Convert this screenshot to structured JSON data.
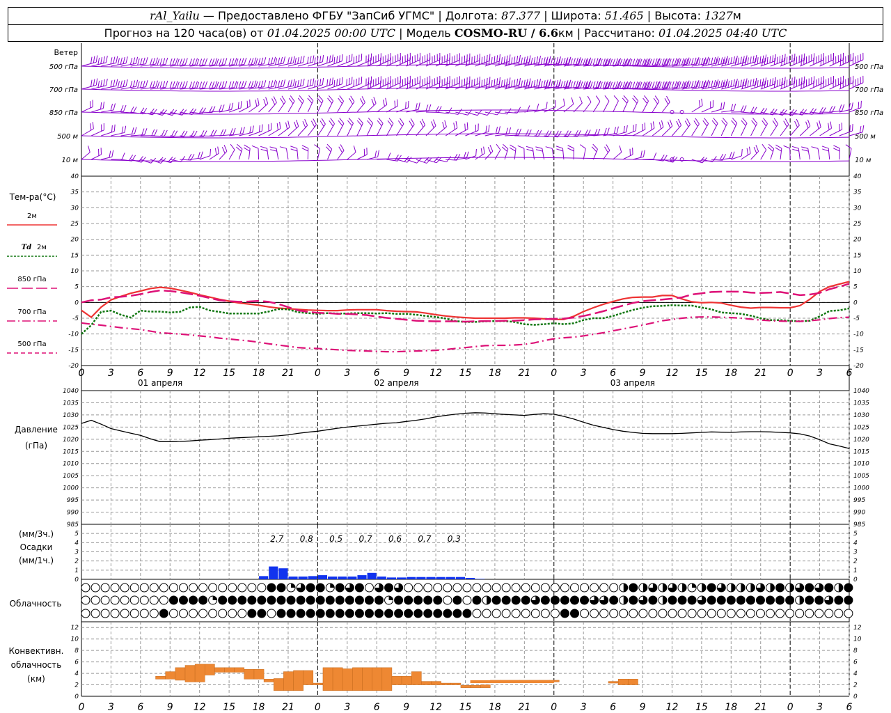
{
  "header": {
    "station": "rAl_Yailu",
    "dash": " — ",
    "provider": "Предоставлено ФГБУ \"ЗапСиб УГМС\"",
    "sep1": " | ",
    "lon_label": "Долгота: ",
    "lon_value": "87.377",
    "sep2": " | ",
    "lat_label": "Широта: ",
    "lat_value": "51.465",
    "sep3": " | ",
    "alt_label": "Высота: ",
    "alt_value": "1327",
    "alt_unit": "м",
    "forecast_label": "Прогноз на 120 часа(ов) от ",
    "forecast_start": "01.04.2025 00:00 UTC",
    "model_label": "  | Модель ",
    "model_name": "COSMO-RU / 6.6",
    "model_unit": "км",
    "calc_label": " | Рассчитано: ",
    "calc_time": "01.04.2025 04:40 UTC"
  },
  "colors": {
    "t2m": "#ee3333",
    "td2m": "#117711",
    "t850": "#dd1177",
    "t700": "#dd1177",
    "t500": "#dd1177",
    "wind": "#8800cc",
    "precip": "#1133ee",
    "conv": "#ee8833",
    "pressure": "#000000",
    "grid": "#999999"
  },
  "wind_panel": {
    "title": "Ветер",
    "levels": [
      "500 гПа",
      "700 гПа",
      "850 гПа",
      "500  м",
      "10   м"
    ]
  },
  "temp_panel": {
    "title": "Тем-ра(°C)",
    "legend": [
      {
        "label": "2м",
        "style": "solid"
      },
      {
        "label_prefix": "Td",
        "label": "2м",
        "style": "dotted"
      },
      {
        "label": "850 гПа",
        "style": "longdash"
      },
      {
        "label": "700 гПа",
        "style": "dashdot"
      },
      {
        "label": "500 гПа",
        "style": "dash"
      }
    ],
    "yticks": [
      "40",
      "35",
      "30",
      "25",
      "20",
      "15",
      "10",
      "5",
      "0",
      "-5",
      "-10",
      "-15",
      "-20"
    ]
  },
  "x_axis": {
    "hour_ticks": [
      "0",
      "3",
      "6",
      "9",
      "12",
      "15",
      "18",
      "21",
      "0",
      "3",
      "6",
      "9",
      "12",
      "15",
      "18",
      "21",
      "0",
      "3",
      "6",
      "9",
      "12",
      "15",
      "18",
      "21",
      "0",
      "3",
      "6"
    ],
    "days": [
      "01 апреля",
      "02 апреля",
      "03 апреля"
    ]
  },
  "pressure_panel": {
    "title": "Давление",
    "unit": "(гПа)",
    "yticks": [
      "1040",
      "1035",
      "1030",
      "1025",
      "1020",
      "1015",
      "1010",
      "1005",
      "1000",
      "995",
      "990",
      "985"
    ]
  },
  "precip_panel": {
    "unit_3h": "(мм/3ч.)",
    "title": "Осадки",
    "unit_1h": "(мм/1ч.)",
    "yticks": [
      "5",
      "4",
      "3",
      "2",
      "1",
      "0"
    ],
    "sums_3h": [
      "2.7",
      "0.8",
      "0.5",
      "0.7",
      "0.6",
      "0.7",
      "0.3"
    ]
  },
  "cloud_panel": {
    "title": "Облачность"
  },
  "conv_panel": {
    "title_line1": "Конвективн.",
    "title_line2": "облачность",
    "unit": "(км)",
    "yticks": [
      "12",
      "10",
      "8",
      "6",
      "4",
      "2",
      "0"
    ]
  },
  "chart_data": [
    {
      "type": "line",
      "title": "Тем-ра(°C)",
      "x_hours": [
        0,
        1,
        2,
        3,
        4,
        5,
        6,
        7,
        8,
        9,
        10,
        11,
        12,
        13,
        14,
        15,
        16,
        17,
        18,
        19,
        20,
        21,
        22,
        23,
        24,
        25,
        26,
        27,
        28,
        29,
        30,
        31,
        32,
        33,
        34,
        35,
        36,
        37,
        38,
        39,
        40,
        41,
        42,
        43,
        44,
        45,
        46,
        47,
        48,
        49,
        50,
        51,
        52,
        53,
        54,
        55,
        56,
        57,
        58,
        59,
        60,
        61,
        62,
        63,
        64,
        65,
        66,
        67,
        68,
        69,
        70,
        71,
        72,
        73,
        74,
        75,
        76,
        77,
        78
      ],
      "ylim": [
        -20,
        40
      ],
      "series": [
        {
          "name": "2м",
          "values": [
            -2.5,
            -4.7,
            -1.5,
            0.8,
            1.9,
            2.9,
            3.6,
            4.4,
            4.8,
            4.5,
            3.9,
            3.2,
            2.4,
            1.7,
            1.0,
            0.4,
            -0.2,
            -0.5,
            -0.9,
            -1.4,
            -1.8,
            -2.0,
            -2.2,
            -2.4,
            -2.5,
            -2.6,
            -2.6,
            -2.4,
            -2.3,
            -2.3,
            -2.3,
            -2.6,
            -2.8,
            -2.9,
            -3.0,
            -3.4,
            -3.9,
            -4.3,
            -4.6,
            -4.8,
            -5.0,
            -5.0,
            -5.0,
            -5.0,
            -4.9,
            -4.9,
            -5.0,
            -5.2,
            -5.4,
            -5.4,
            -4.4,
            -2.9,
            -1.7,
            -0.6,
            0.3,
            1.1,
            1.6,
            1.7,
            1.7,
            2.2,
            2.2,
            1.1,
            0.2,
            -0.1,
            0.0,
            -0.2,
            -0.9,
            -1.5,
            -1.8,
            -1.6,
            -1.6,
            -1.7,
            -1.7,
            -1.0,
            1.0,
            3.5,
            5.0,
            5.8,
            6.6
          ]
        },
        {
          "name": "Td 2м",
          "values": [
            -10.0,
            -7.2,
            -3.0,
            -2.6,
            -3.9,
            -4.8,
            -2.6,
            -2.9,
            -2.9,
            -3.2,
            -3.0,
            -1.6,
            -1.4,
            -2.5,
            -3.0,
            -3.5,
            -3.5,
            -3.5,
            -3.5,
            -2.9,
            -2.1,
            -2.2,
            -3.1,
            -3.4,
            -3.6,
            -3.4,
            -3.5,
            -3.5,
            -3.4,
            -3.4,
            -3.5,
            -3.4,
            -3.6,
            -3.6,
            -3.9,
            -4.3,
            -4.6,
            -5.1,
            -5.9,
            -6.2,
            -6.2,
            -6.0,
            -5.9,
            -5.9,
            -6.2,
            -6.9,
            -7.1,
            -6.9,
            -6.6,
            -6.9,
            -6.6,
            -5.6,
            -5.0,
            -5.0,
            -4.3,
            -3.3,
            -2.4,
            -1.7,
            -1.2,
            -1.1,
            -0.9,
            -1.0,
            -1.0,
            -1.6,
            -2.2,
            -3.2,
            -3.4,
            -3.6,
            -4.2,
            -5.0,
            -5.6,
            -5.6,
            -5.8,
            -6.0,
            -5.8,
            -4.4,
            -2.7,
            -2.5,
            -1.9
          ]
        },
        {
          "name": "850 гПа",
          "values": [
            0.0,
            0.7,
            0.9,
            1.6,
            1.8,
            2.1,
            2.6,
            3.3,
            3.8,
            3.6,
            3.2,
            2.7,
            2.1,
            1.4,
            0.7,
            0.4,
            0.2,
            0.3,
            0.5,
            0.2,
            -0.5,
            -1.5,
            -2.5,
            -3.0,
            -3.3,
            -3.4,
            -3.6,
            -3.6,
            -3.8,
            -4.0,
            -4.5,
            -4.9,
            -5.2,
            -5.5,
            -5.8,
            -5.9,
            -6.0,
            -6.0,
            -6.0,
            -6.1,
            -6.0,
            -5.9,
            -5.9,
            -5.8,
            -5.8,
            -5.6,
            -5.4,
            -5.3,
            -5.2,
            -5.1,
            -4.8,
            -4.3,
            -3.6,
            -2.8,
            -1.9,
            -1.0,
            -0.2,
            0.4,
            0.7,
            0.9,
            1.2,
            1.6,
            2.5,
            2.9,
            3.3,
            3.4,
            3.4,
            3.4,
            3.1,
            3.0,
            3.1,
            3.3,
            2.8,
            2.3,
            2.5,
            3.0,
            4.2,
            5.0,
            5.9
          ]
        },
        {
          "name": "700 гПа",
          "values": [
            -6.5,
            -6.9,
            -7.2,
            -7.6,
            -8.0,
            -8.3,
            -8.6,
            -9.1,
            -9.6,
            -9.8,
            -10.0,
            -10.3,
            -10.6,
            -10.9,
            -11.3,
            -11.6,
            -11.9,
            -12.2,
            -12.6,
            -13.1,
            -13.5,
            -13.9,
            -14.3,
            -14.5,
            -14.6,
            -14.8,
            -15.0,
            -15.2,
            -15.3,
            -15.4,
            -15.5,
            -15.6,
            -15.6,
            -15.5,
            -15.4,
            -15.3,
            -15.2,
            -14.9,
            -14.6,
            -14.3,
            -14.0,
            -13.7,
            -13.6,
            -13.6,
            -13.5,
            -13.3,
            -12.8,
            -12.1,
            -11.5,
            -11.2,
            -11.0,
            -10.6,
            -10.1,
            -9.6,
            -9.0,
            -8.4,
            -7.8,
            -7.2,
            -6.5,
            -5.8,
            -5.4,
            -5.0,
            -4.7,
            -4.6,
            -4.6,
            -4.7,
            -4.8,
            -5.0,
            -5.3,
            -5.6,
            -5.8,
            -5.9,
            -6.0,
            -6.0,
            -5.8,
            -5.5,
            -5.1,
            -4.8,
            -4.7
          ]
        }
      ]
    },
    {
      "type": "line",
      "title": "Давление",
      "ylabel": "(гПа)",
      "ylim": [
        985,
        1040
      ],
      "x_hours": [
        0,
        1,
        2,
        3,
        4,
        5,
        6,
        7,
        8,
        9,
        10,
        11,
        12,
        13,
        14,
        15,
        16,
        17,
        18,
        19,
        20,
        21,
        22,
        23,
        24,
        25,
        26,
        27,
        28,
        29,
        30,
        31,
        32,
        33,
        34,
        35,
        36,
        37,
        38,
        39,
        40,
        41,
        42,
        43,
        44,
        45,
        46,
        47,
        48,
        49,
        50,
        51,
        52,
        53,
        54,
        55,
        56,
        57,
        58,
        59,
        60,
        61,
        62,
        63,
        64,
        65,
        66,
        67,
        68,
        69,
        70,
        71,
        72,
        73,
        74,
        75,
        76,
        77,
        78
      ],
      "values": [
        1026.5,
        1027.8,
        1026.2,
        1024.4,
        1023.4,
        1022.5,
        1021.6,
        1020.2,
        1019.0,
        1019.0,
        1019.1,
        1019.3,
        1019.6,
        1019.8,
        1020.1,
        1020.4,
        1020.6,
        1020.8,
        1021.0,
        1021.2,
        1021.4,
        1021.8,
        1022.4,
        1022.9,
        1023.3,
        1023.9,
        1024.5,
        1025.0,
        1025.4,
        1025.8,
        1026.2,
        1026.6,
        1026.8,
        1027.3,
        1027.8,
        1028.4,
        1029.2,
        1029.8,
        1030.3,
        1030.7,
        1030.9,
        1030.8,
        1030.5,
        1030.2,
        1030.0,
        1029.8,
        1030.2,
        1030.5,
        1030.3,
        1029.4,
        1028.3,
        1027.0,
        1025.8,
        1024.9,
        1024.0,
        1023.3,
        1022.8,
        1022.4,
        1022.3,
        1022.3,
        1022.3,
        1022.4,
        1022.6,
        1022.8,
        1023.0,
        1022.9,
        1022.8,
        1023.0,
        1023.1,
        1023.1,
        1023.0,
        1022.8,
        1022.6,
        1022.2,
        1021.3,
        1019.8,
        1018.1,
        1017.2,
        1016.2
      ]
    },
    {
      "type": "bar",
      "title": "Осадки",
      "ylabel": "(мм/1ч.)",
      "ylim": [
        0,
        5
      ],
      "x_hours": [
        18,
        19,
        20,
        21,
        22,
        23,
        24,
        25,
        26,
        27,
        28,
        29,
        30,
        31,
        32,
        33,
        34,
        35,
        36,
        37,
        38,
        39,
        40
      ],
      "values": [
        0.35,
        1.4,
        1.2,
        0.3,
        0.3,
        0.35,
        0.45,
        0.3,
        0.3,
        0.3,
        0.45,
        0.7,
        0.3,
        0.2,
        0.2,
        0.25,
        0.25,
        0.25,
        0.25,
        0.25,
        0.25,
        0.15,
        0.05
      ]
    },
    {
      "type": "bar",
      "title": "Конвективн. облачность",
      "ylabel": "(км)",
      "ylim": [
        0,
        13
      ],
      "x_hours": [
        8,
        9,
        10,
        11,
        12,
        13,
        14,
        15,
        16,
        17,
        18,
        19,
        20,
        21,
        22,
        23,
        24,
        25,
        26,
        27,
        28,
        29,
        30,
        31,
        32,
        33,
        34,
        35,
        36,
        37,
        38,
        39,
        40,
        41,
        42,
        43,
        44,
        45,
        46,
        47,
        48,
        54,
        55,
        56
      ],
      "bottoms": [
        3,
        3,
        2.8,
        2.5,
        2.5,
        3.7,
        4.2,
        4.2,
        4.2,
        3,
        3,
        2.5,
        1,
        1,
        1,
        2,
        2,
        1,
        1,
        1,
        1,
        1,
        1,
        1,
        2,
        2,
        2,
        2,
        2,
        2,
        2,
        1.5,
        1.5,
        1.5,
        2.5,
        2.5,
        2.5,
        2.5,
        2.5,
        2.5,
        2.5,
        2.3,
        2.0,
        2.0
      ],
      "tops": [
        3.5,
        4.3,
        5.0,
        5.4,
        5.6,
        5.6,
        5.0,
        5.0,
        5.0,
        4.7,
        4.7,
        3.0,
        3.1,
        4.3,
        4.5,
        4.5,
        2.3,
        5.0,
        5.0,
        4.8,
        5.0,
        5.0,
        5.0,
        5.0,
        3.5,
        3.5,
        4.3,
        2.6,
        2.6,
        2.3,
        2.3,
        1.9,
        1.9,
        2.0,
        2.8,
        2.8,
        2.8,
        2.8,
        2.8,
        2.8,
        2.8,
        2.6,
        3.0,
        3.0
      ]
    }
  ]
}
